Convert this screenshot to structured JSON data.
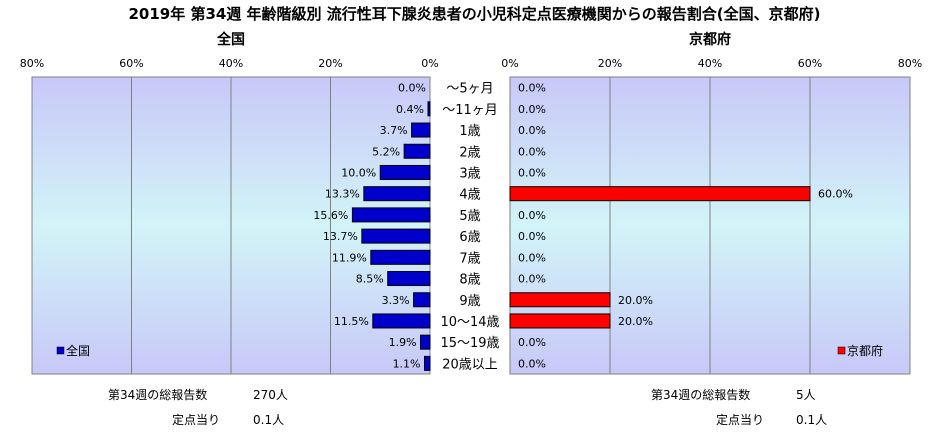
{
  "title": "2019年 第34週 年齢階級別 流行性耳下腺炎患者の小児科定点医療機関からの報告割合(全国、京都府)",
  "chart_data": [
    {
      "type": "bar",
      "orientation": "horizontal",
      "direction": "right-to-left",
      "subtitle": "全国",
      "legend_label": "全国",
      "legend_position": "bottom-left",
      "color": "#0000cc",
      "xlim": [
        0,
        80
      ],
      "ticks": [
        "80%",
        "60%",
        "40%",
        "20%",
        "0%"
      ],
      "grid": true,
      "categories": [
        "～5ヶ月",
        "～11ヶ月",
        "1歳",
        "2歳",
        "3歳",
        "4歳",
        "5歳",
        "6歳",
        "7歳",
        "8歳",
        "9歳",
        "10～14歳",
        "15～19歳",
        "20歳以上"
      ],
      "values": [
        0.0,
        0.4,
        3.7,
        5.2,
        10.0,
        13.3,
        15.6,
        13.7,
        11.9,
        8.5,
        3.3,
        11.5,
        1.9,
        1.1
      ],
      "value_labels": [
        "0.0%",
        "0.4%",
        "3.7%",
        "5.2%",
        "10.0%",
        "13.3%",
        "15.6%",
        "13.7%",
        "11.9%",
        "8.5%",
        "3.3%",
        "11.5%",
        "1.9%",
        "1.1%"
      ]
    },
    {
      "type": "bar",
      "orientation": "horizontal",
      "direction": "left-to-right",
      "subtitle": "京都府",
      "legend_label": "京都府",
      "legend_position": "bottom-right",
      "color": "#ff0000",
      "xlim": [
        0,
        80
      ],
      "ticks": [
        "0%",
        "20%",
        "40%",
        "60%",
        "80%"
      ],
      "grid": true,
      "categories": [
        "～5ヶ月",
        "～11ヶ月",
        "1歳",
        "2歳",
        "3歳",
        "4歳",
        "5歳",
        "6歳",
        "7歳",
        "8歳",
        "9歳",
        "10～14歳",
        "15～19歳",
        "20歳以上"
      ],
      "values": [
        0.0,
        0.0,
        0.0,
        0.0,
        0.0,
        60.0,
        0.0,
        0.0,
        0.0,
        0.0,
        20.0,
        20.0,
        0.0,
        0.0
      ],
      "value_labels": [
        "0.0%",
        "0.0%",
        "0.0%",
        "0.0%",
        "0.0%",
        "60.0%",
        "0.0%",
        "0.0%",
        "0.0%",
        "0.0%",
        "20.0%",
        "20.0%",
        "0.0%",
        "0.0%"
      ]
    }
  ],
  "footer": {
    "national": {
      "total_label": "第34週の総報告数",
      "total_value": "270人",
      "per_label": "定点当り",
      "per_value": "0.1人"
    },
    "kyoto": {
      "total_label": "第34週の総報告数",
      "total_value": "5人",
      "per_label": "定点当り",
      "per_value": "0.1人"
    }
  }
}
